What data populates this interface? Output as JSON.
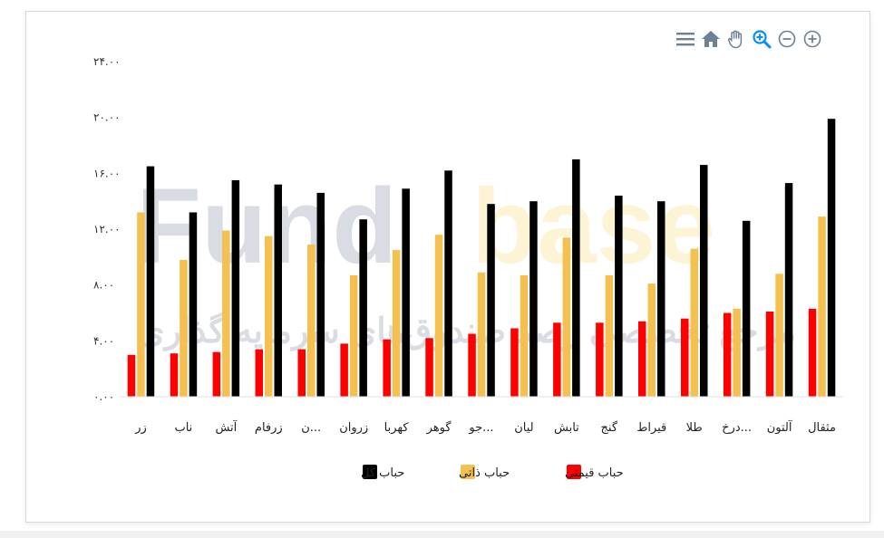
{
  "toolbar": {
    "icons": [
      "menu-icon",
      "home-icon",
      "pan-hand-icon",
      "zoom-in-icon",
      "zoom-out-circle-icon",
      "zoom-in-circle-icon"
    ]
  },
  "watermark": {
    "brand_left": "Fund",
    "brand_right": "base",
    "tagline": "مرجع تخصصی رصد صندوق‌های سرمایه گذاری"
  },
  "chart_data": {
    "type": "bar",
    "ylim": [
      0,
      24
    ],
    "yticks": [
      0,
      4,
      8,
      12,
      16,
      20,
      24
    ],
    "ytick_labels": [
      "۰.۰۰",
      "۴.۰۰",
      "۸.۰۰",
      "۱۲.۰۰",
      "۱۶.۰۰",
      "۲۰.۰۰",
      "۲۴.۰۰"
    ],
    "categories": [
      "زر",
      "ناب",
      "آتش",
      "زرفام",
      "ن...",
      "زروان",
      "کهربا",
      "گوهر",
      "جو...",
      "لیان",
      "تابش",
      "گنج",
      "قیراط",
      "طلا",
      "درخ...",
      "آلتون",
      "مثقال"
    ],
    "series": [
      {
        "name": "حباب قیمتی",
        "color": "#ff0000",
        "values": [
          3.0,
          3.1,
          3.2,
          3.4,
          3.4,
          3.8,
          4.1,
          4.2,
          4.5,
          4.9,
          5.3,
          5.3,
          5.4,
          5.6,
          6.0,
          6.1,
          6.3
        ]
      },
      {
        "name": "حباب ذاتی",
        "color": "#f4c050",
        "values": [
          13.2,
          9.8,
          11.9,
          11.5,
          10.9,
          8.7,
          10.5,
          11.6,
          8.9,
          8.7,
          11.4,
          8.7,
          8.1,
          10.6,
          6.3,
          8.8,
          12.9
        ]
      },
      {
        "name": "حباب کل",
        "color": "#000000",
        "values": [
          16.5,
          13.2,
          15.5,
          15.2,
          14.6,
          12.7,
          14.9,
          16.2,
          13.8,
          14.0,
          17.0,
          14.4,
          14.0,
          16.6,
          12.6,
          15.3,
          19.9
        ]
      }
    ],
    "legend_position": "bottom-center",
    "grid": false
  }
}
